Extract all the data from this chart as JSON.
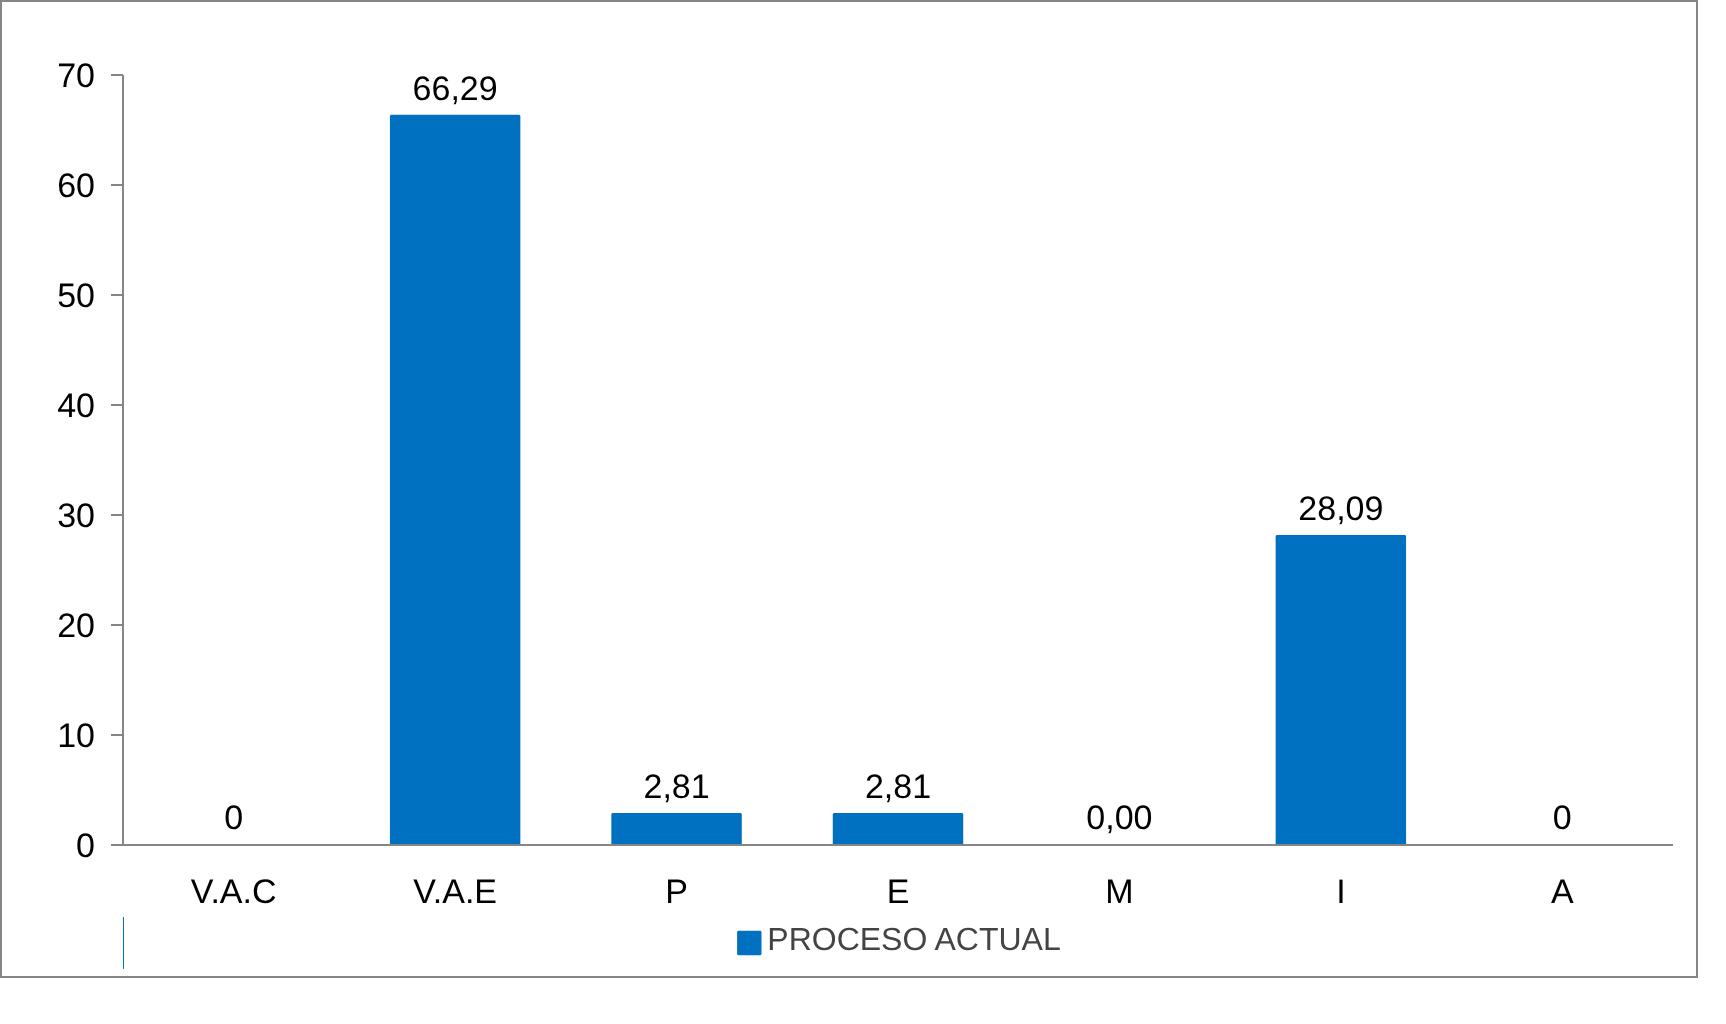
{
  "chart_data": {
    "type": "bar",
    "categories": [
      "V.A.C",
      "V.A.E",
      "P",
      "E",
      "M",
      "I",
      "A"
    ],
    "series": [
      {
        "name": "PROCESO ACTUAL",
        "color": "#0070c0",
        "values": [
          0,
          66.29,
          2.81,
          2.81,
          0,
          28.09,
          0
        ],
        "value_labels": [
          "0",
          "66,29",
          "2,81",
          "2,81",
          "0,00",
          "28,09",
          "0"
        ]
      }
    ],
    "ylim": [
      0,
      70
    ],
    "yticks": [
      0,
      10,
      20,
      30,
      40,
      50,
      60,
      70
    ],
    "grid": false,
    "legend": "bottom"
  }
}
